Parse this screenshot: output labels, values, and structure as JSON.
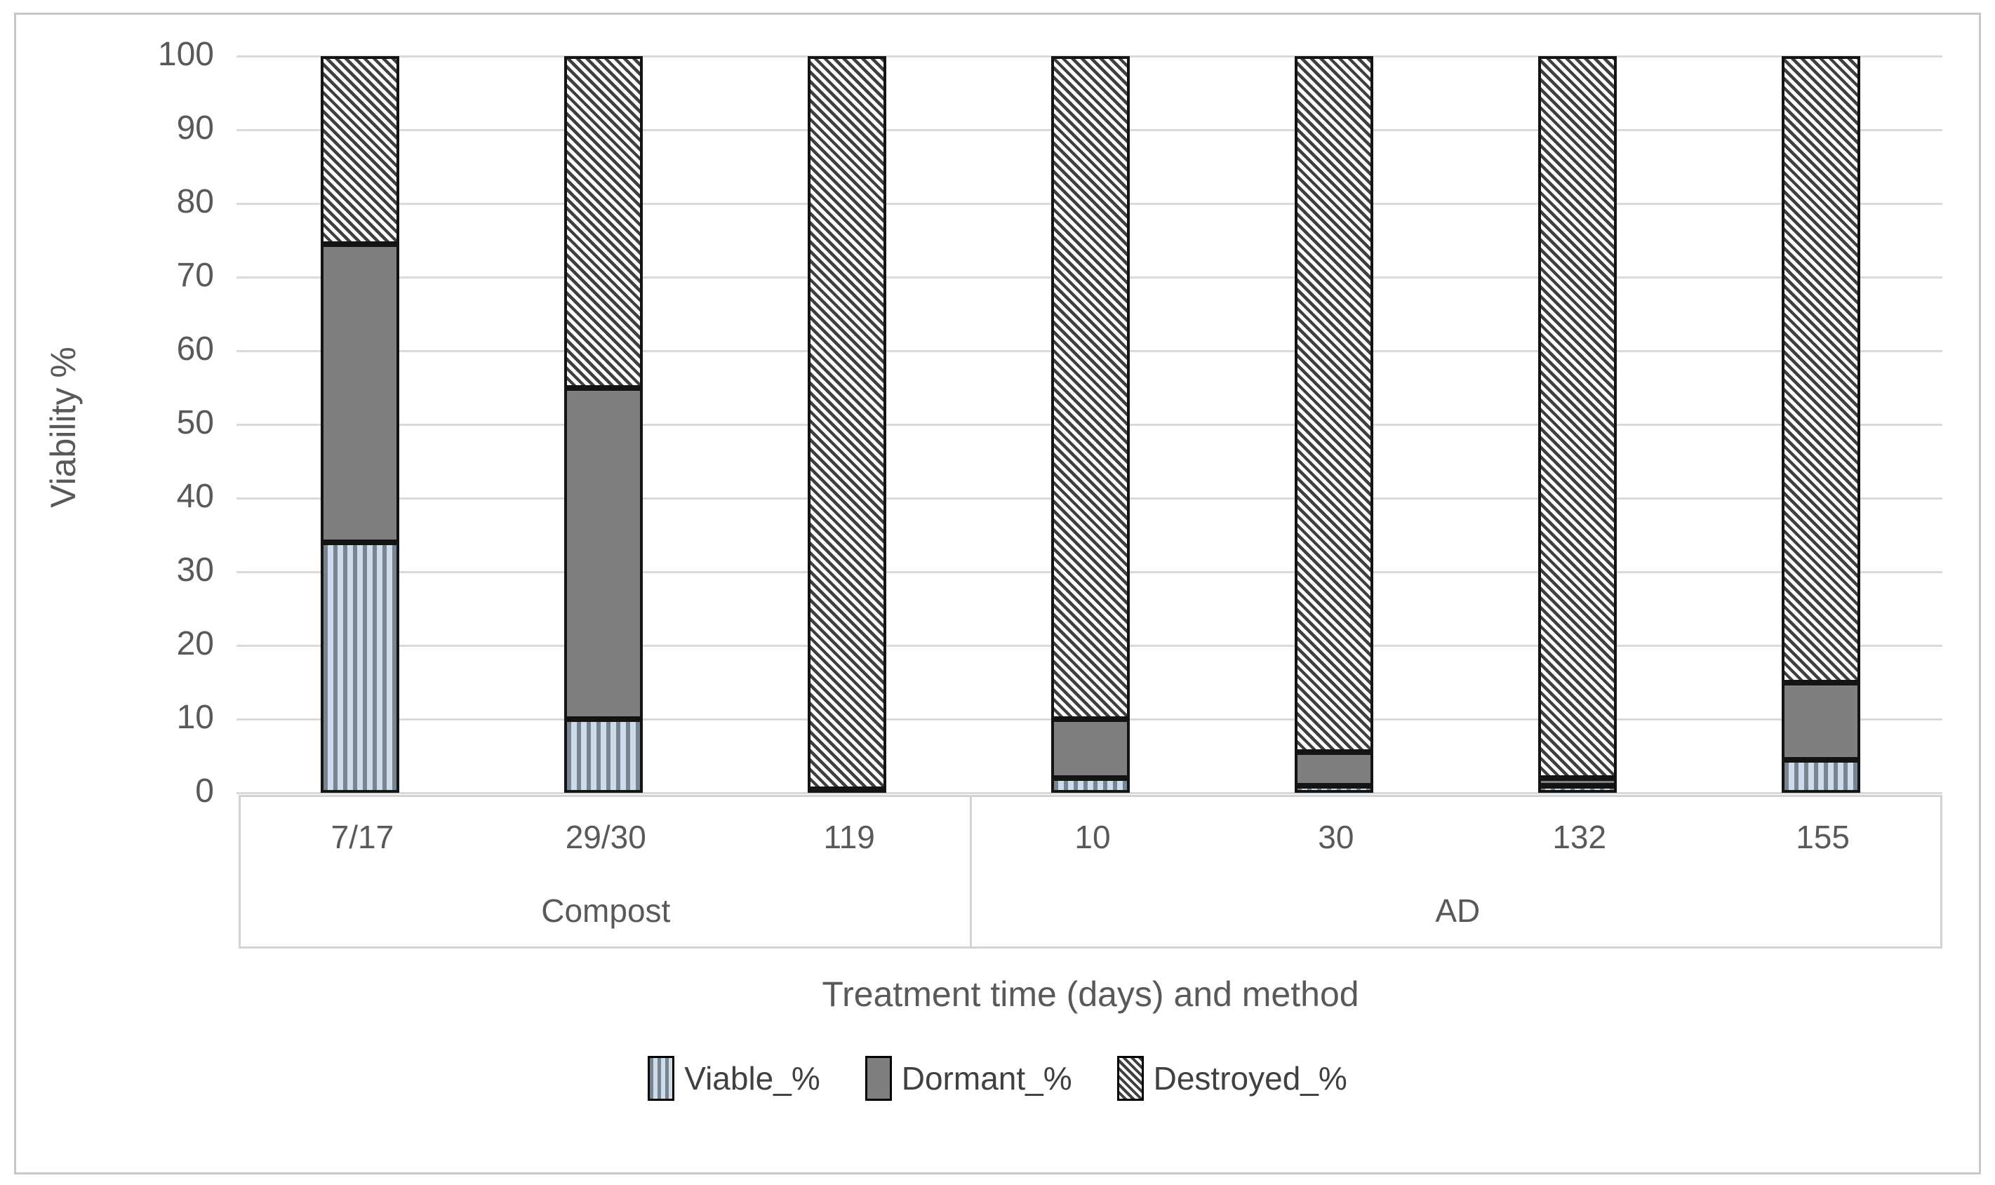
{
  "chart_data": {
    "type": "bar",
    "stacked": true,
    "ylabel": "Viability %",
    "xlabel": "Treatment time (days) and method",
    "ylim": [
      0,
      100
    ],
    "ytick_step": 10,
    "yticks": [
      "0",
      "10",
      "20",
      "30",
      "40",
      "50",
      "60",
      "70",
      "80",
      "90",
      "100"
    ],
    "grid": true,
    "categories": [
      "7/17",
      "29/30",
      "119",
      "10",
      "30",
      "132",
      "155"
    ],
    "groups": [
      {
        "label": "Compost",
        "categories": [
          "7/17",
          "29/30",
          "119"
        ]
      },
      {
        "label": "AD",
        "categories": [
          "10",
          "30",
          "132",
          "155"
        ]
      }
    ],
    "series": [
      {
        "name": "Viable_%",
        "pattern": "blue-vertical-stripes",
        "values": [
          34,
          10,
          0,
          2,
          1,
          1,
          4.5
        ]
      },
      {
        "name": "Dormant_%",
        "pattern": "solid-gray",
        "values": [
          40.5,
          45,
          0.5,
          8,
          4.5,
          1,
          10.5
        ]
      },
      {
        "name": "Destroyed_%",
        "pattern": "dark-diagonal-hatch",
        "values": [
          25.5,
          45,
          99.5,
          90,
          94.5,
          98,
          85
        ]
      }
    ],
    "legend": {
      "position": "bottom",
      "entries": [
        "Viable_%",
        "Dormant_%",
        "Destroyed_%"
      ]
    }
  },
  "colors": {
    "viable_stripe_light": "#cddcea",
    "viable_stripe_dark": "#78858f",
    "dormant_gray": "#7f7f7f",
    "destroyed_hatch": "#3f3f3f",
    "gridline": "#d9d9d9",
    "axis_text": "#595959",
    "bar_border": "#141414",
    "figure_border": "#c7c7c7",
    "category_box_border": "#d3d3d3"
  }
}
